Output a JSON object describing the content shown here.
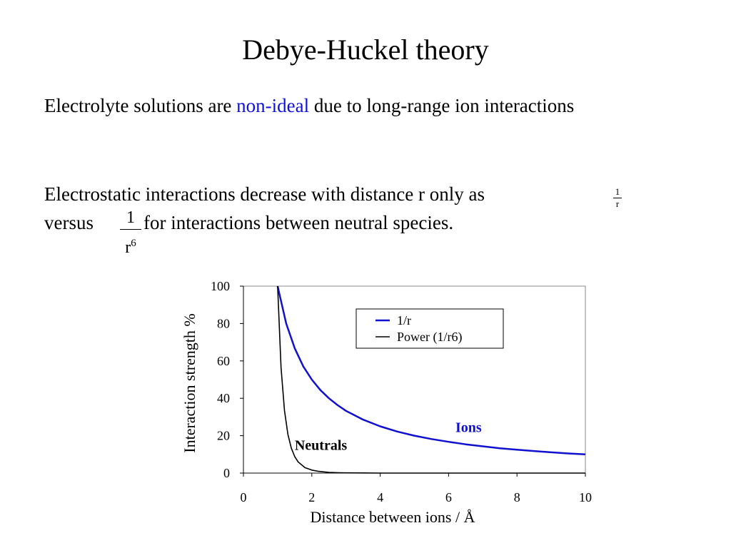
{
  "slide": {
    "title": "Debye-Huckel theory",
    "para1": {
      "before": "Electrolyte solutions are ",
      "highlight": "non-ideal",
      "after": " due to long-range ion interactions"
    },
    "para2": {
      "line1": "Electrostatic interactions decrease with distance r only as",
      "line2_before": "versus",
      "line2_after": "for interactions between neutral species."
    },
    "fraction_r6": {
      "numerator": "1",
      "base": "r",
      "exponent": "6"
    },
    "fraction_r": {
      "numerator": "1",
      "denominator": "r"
    },
    "accent_color": "#1010e0"
  },
  "chart_data": {
    "type": "line",
    "xlabel": "Distance between ions / Å",
    "ylabel": "Interaction strength %",
    "xlim": [
      0,
      10
    ],
    "ylim": [
      0,
      100
    ],
    "xticks": [
      "0",
      "2",
      "4",
      "6",
      "8",
      "10"
    ],
    "yticks": [
      "0",
      "20",
      "40",
      "60",
      "80",
      "100"
    ],
    "grid": false,
    "legend_position": "top-right",
    "series": [
      {
        "name": "1/r",
        "color": "#1010d0",
        "x": [
          1,
          1.25,
          1.5,
          1.75,
          2,
          2.25,
          2.5,
          2.75,
          3,
          3.5,
          4,
          4.5,
          5,
          5.5,
          6,
          6.5,
          7,
          7.5,
          8,
          8.5,
          9,
          9.5,
          10
        ],
        "y": [
          100,
          80,
          66.7,
          57.1,
          50,
          44.4,
          40,
          36.4,
          33.3,
          28.6,
          25,
          22.2,
          20,
          18.2,
          16.7,
          15.4,
          14.3,
          13.3,
          12.5,
          11.8,
          11.1,
          10.5,
          10
        ]
      },
      {
        "name": "Power (1/r6)",
        "color": "#000000",
        "x": [
          1,
          1.1,
          1.2,
          1.3,
          1.4,
          1.5,
          1.6,
          1.8,
          2,
          2.2,
          2.5,
          2.8,
          3,
          4,
          5,
          6,
          7,
          8,
          9,
          10
        ],
        "y": [
          100,
          56.4,
          33.5,
          20.7,
          13.3,
          8.8,
          6.0,
          2.9,
          1.6,
          0.9,
          0.4,
          0.2,
          0.1,
          0,
          0,
          0,
          0,
          0,
          0,
          0
        ]
      }
    ],
    "annotations": [
      {
        "text": "Ions",
        "x": 6.2,
        "y": 22,
        "color": "#1010d0"
      },
      {
        "text": "Neutrals",
        "x": 1.5,
        "y": 12.5,
        "color": "#000000"
      }
    ]
  }
}
